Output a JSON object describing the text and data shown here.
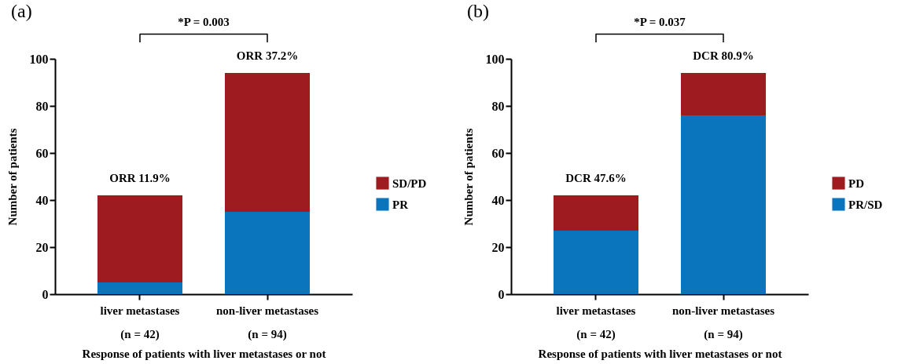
{
  "chart_data": [
    {
      "type": "bar",
      "title": "(a)",
      "xlabel": "Response of patients with liver metastases or not",
      "ylabel": "Number of patients",
      "categories": [
        "liver metastases\n(n = 42)",
        "non-liver metastases\n(n = 94)"
      ],
      "stacked": true,
      "series": [
        {
          "name": "PR",
          "color": "#0a74bd",
          "values": [
            5,
            35
          ]
        },
        {
          "name": "SD/PD",
          "color": "#9e1b20",
          "values": [
            37,
            59
          ]
        }
      ],
      "ylim": [
        0,
        100
      ],
      "yticks": [
        0,
        20,
        40,
        60,
        80,
        100
      ],
      "grid": false,
      "legend": "right",
      "annotations": [
        {
          "text": "*P = 0.003"
        },
        {
          "text": "ORR 11.9%",
          "x": "liver metastases\n(n = 42)",
          "y": 42
        },
        {
          "text": "ORR 37.2%",
          "x": "non-liver metastases\n(n = 94)",
          "y": 94
        }
      ]
    },
    {
      "type": "bar",
      "title": "(b)",
      "xlabel": "Response of patients with liver metastases or not",
      "ylabel": "Number of patients",
      "categories": [
        "liver metastases\n(n = 42)",
        "non-liver metastases\n(n = 94)"
      ],
      "stacked": true,
      "series": [
        {
          "name": "PR/SD",
          "color": "#0a74bd",
          "values": [
            27,
            76
          ]
        },
        {
          "name": "PD",
          "color": "#9e1b20",
          "values": [
            15,
            18
          ]
        }
      ],
      "ylim": [
        0,
        100
      ],
      "yticks": [
        0,
        20,
        40,
        60,
        80,
        100
      ],
      "grid": false,
      "legend": "right",
      "annotations": [
        {
          "text": "*P = 0.037"
        },
        {
          "text": "DCR 47.6%",
          "x": "liver metastases\n(n = 42)",
          "y": 42
        },
        {
          "text": "DCR 80.9%",
          "x": "non-liver metastases\n(n = 94)",
          "y": 94
        }
      ]
    }
  ]
}
